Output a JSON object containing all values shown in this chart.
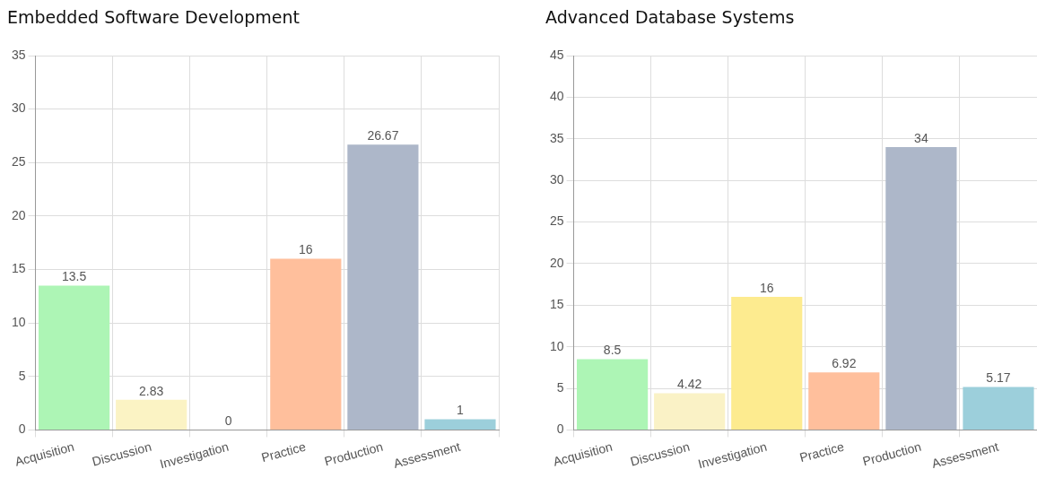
{
  "chart_data": [
    {
      "type": "bar",
      "title": "Embedded Software Development",
      "categories": [
        "Acquisition",
        "Discussion",
        "Investigation",
        "Practice",
        "Production",
        "Assessment"
      ],
      "values": [
        13.5,
        2.83,
        0,
        16,
        26.67,
        1
      ],
      "colors": [
        "#adf5b5",
        "#fbf3c4",
        "#fdeb8f",
        "#ffbf9c",
        "#adb7c9",
        "#9ccfdb"
      ],
      "ylim": [
        0,
        35
      ],
      "yticks": [
        0,
        5,
        10,
        15,
        20,
        25,
        30,
        35
      ],
      "grid": true,
      "legend": false,
      "data_labels": true
    },
    {
      "type": "bar",
      "title": "Advanced Database Systems",
      "categories": [
        "Acquisition",
        "Discussion",
        "Investigation",
        "Practice",
        "Production",
        "Assessment"
      ],
      "values": [
        8.5,
        4.42,
        16,
        6.92,
        34,
        5.17
      ],
      "colors": [
        "#adf5b5",
        "#faf2c6",
        "#fdeb8f",
        "#ffbf9c",
        "#adb7c9",
        "#9ccfdb"
      ],
      "ylim": [
        0,
        45
      ],
      "yticks": [
        0,
        5,
        10,
        15,
        20,
        25,
        30,
        35,
        40,
        45
      ],
      "grid": true,
      "legend": false,
      "data_labels": true
    }
  ]
}
